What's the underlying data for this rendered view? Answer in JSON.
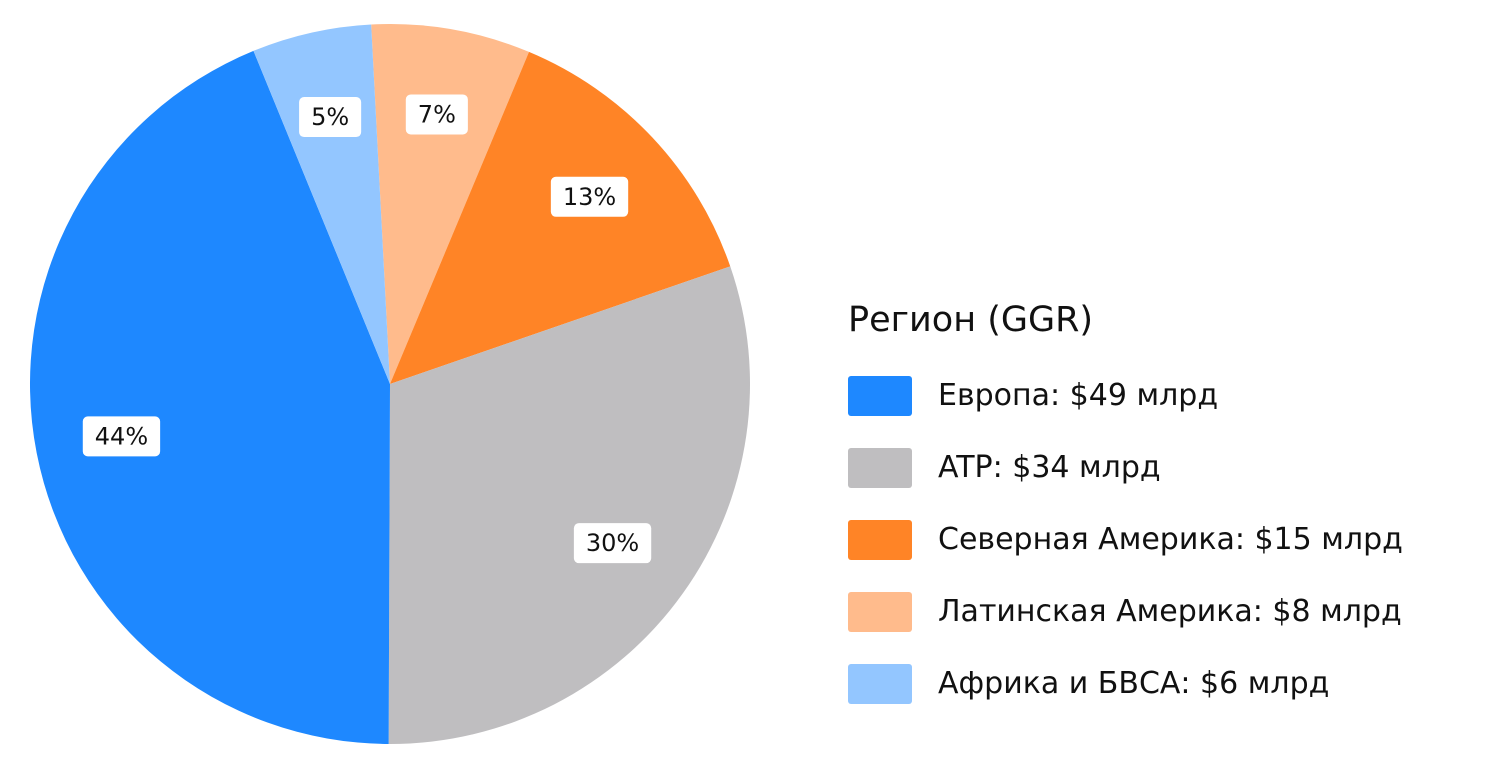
{
  "chart_data": {
    "type": "pie",
    "slices": [
      {
        "label": "Европа: $49 млрд",
        "value": 49,
        "percent_label": "44%",
        "color": "#1E88FF"
      },
      {
        "label": "ATP: $34 млрд",
        "value": 34,
        "percent_label": "30%",
        "color": "#BFBEC0"
      },
      {
        "label": "Северная Америка: $15 млрд",
        "value": 15,
        "percent_label": "13%",
        "color": "#FF8426"
      },
      {
        "label": "Латинская Америка: $8 млрд",
        "value": 8,
        "percent_label": "7%",
        "color": "#FFBB8C"
      },
      {
        "label": "Африка и БВСА: $6 млрд",
        "value": 6,
        "percent_label": "5%",
        "color": "#93C6FF"
      }
    ],
    "legend": {
      "title": "Регион (GGR)",
      "position": "right"
    }
  }
}
